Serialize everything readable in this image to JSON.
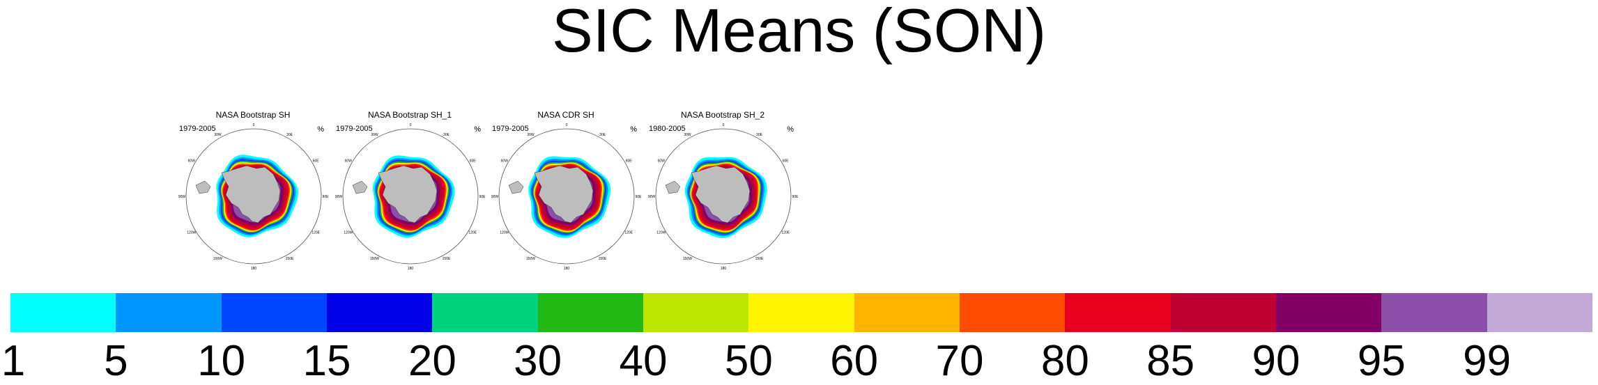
{
  "title": "SIC Means (SON)",
  "chart_data": {
    "type": "map",
    "title": "SIC Means (SON)",
    "projection": "south polar stereographic",
    "panels": [
      {
        "name": "NASA Bootstrap SH",
        "period": "1979-2005",
        "unit": "%"
      },
      {
        "name": "NASA Bootstrap SH_1",
        "period": "1979-2005",
        "unit": "%"
      },
      {
        "name": "NASA CDR SH",
        "period": "1979-2005",
        "unit": "%"
      },
      {
        "name": "NASA Bootstrap SH_2",
        "period": "1980-2005",
        "unit": "%"
      }
    ],
    "longitude_labels": [
      "0",
      "30E",
      "60E",
      "90E",
      "120E",
      "150E",
      "180",
      "150W",
      "120W",
      "90W",
      "60W",
      "30W"
    ],
    "colorbar": {
      "levels": [
        "1",
        "5",
        "10",
        "15",
        "20",
        "30",
        "40",
        "50",
        "60",
        "70",
        "80",
        "85",
        "90",
        "95",
        "99"
      ],
      "colors": [
        "#00ffff",
        "#0096ff",
        "#0046ff",
        "#0000e6",
        "#00d27d",
        "#23b914",
        "#bee600",
        "#fff500",
        "#ffb400",
        "#ff4b00",
        "#e6001e",
        "#be0032",
        "#820064",
        "#8c50aa",
        "#c3aad7"
      ]
    }
  }
}
